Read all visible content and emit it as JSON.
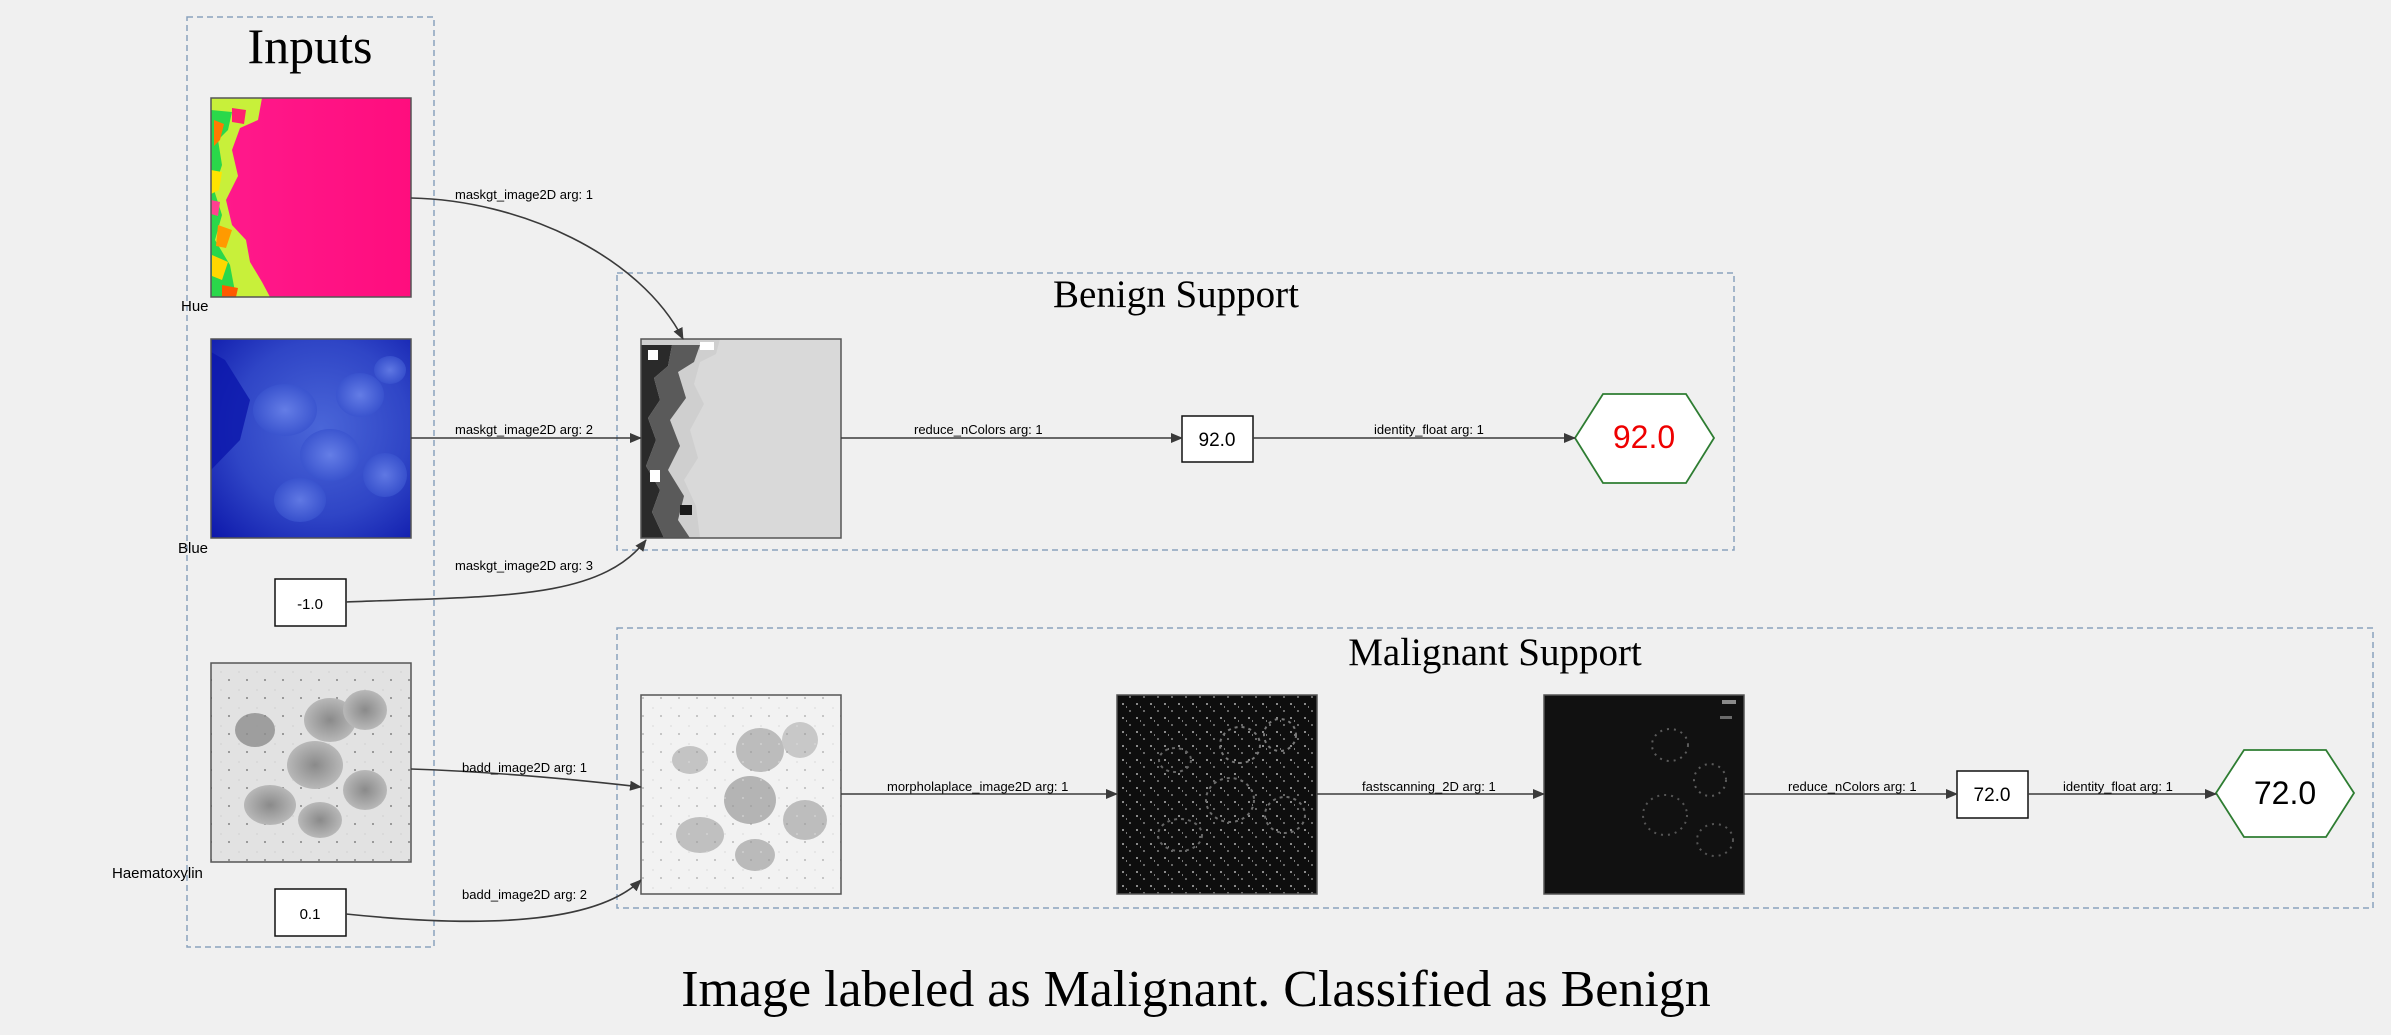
{
  "clusters": {
    "inputs": "Inputs",
    "benign": "Benign Support",
    "malignant": "Malignant Support"
  },
  "input_labels": {
    "hue": "Hue",
    "blue": "Blue",
    "haematoxylin": "Haematoxylin"
  },
  "constants": {
    "neg_one": "-1.0",
    "point_one": "0.1"
  },
  "edges": {
    "mask1": "maskgt_image2D arg: 1",
    "mask2": "maskgt_image2D arg: 2",
    "mask3": "maskgt_image2D arg: 3",
    "reduce_benign": "reduce_nColors arg: 1",
    "identity_benign": "identity_float arg: 1",
    "badd1": "badd_image2D arg: 1",
    "badd2": "badd_image2D arg: 2",
    "morph": "morpholaplace_image2D arg: 1",
    "fast": "fastscanning_2D arg: 1",
    "reduce_malig": "reduce_nColors arg: 1",
    "identity_malig": "identity_float arg: 1"
  },
  "values": {
    "benign_box": "92.0",
    "benign_out": "92.0",
    "malig_box": "72.0",
    "malig_out": "72.0"
  },
  "colors": {
    "benign_output_text": "#ee0000",
    "malignant_output_text": "#000000",
    "output_border": "#2e7d32"
  },
  "caption": "Image labeled as Malignant. Classified as Benign"
}
